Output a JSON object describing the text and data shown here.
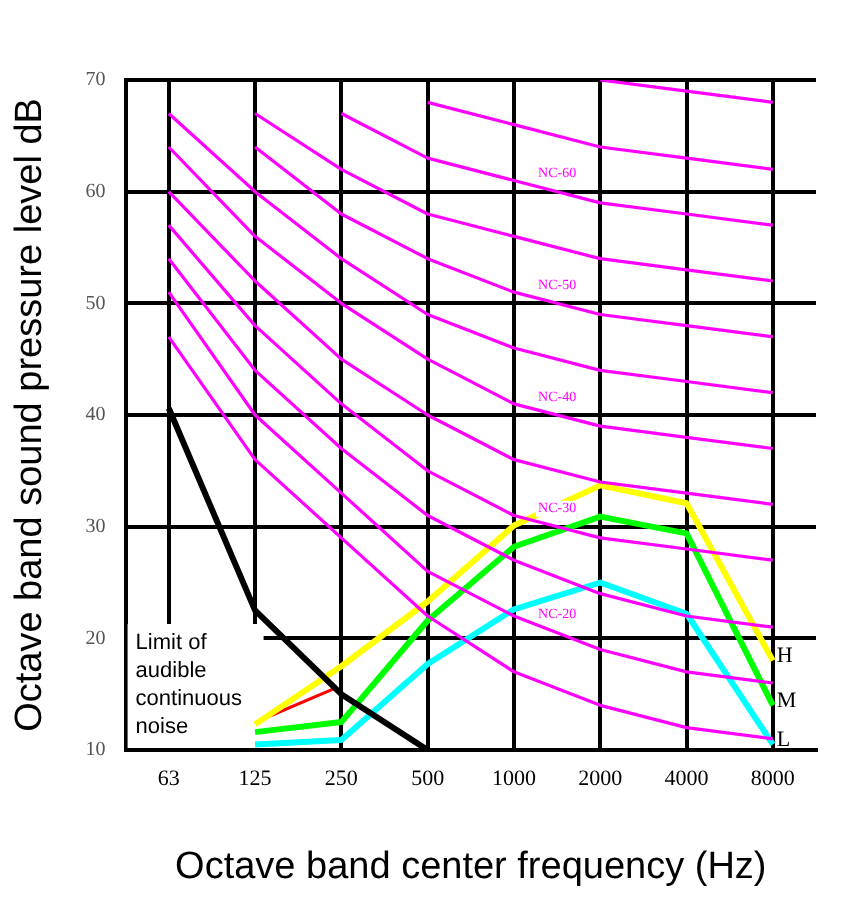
{
  "chart_data": {
    "type": "line",
    "xlabel": "Octave band center frequency (Hz)",
    "ylabel": "Octave band sound pressure level dB",
    "categories": [
      "63",
      "125",
      "250",
      "500",
      "1000",
      "2000",
      "4000",
      "8000"
    ],
    "ylim": [
      10,
      70
    ],
    "yticks": [
      10,
      20,
      30,
      40,
      50,
      60,
      70
    ],
    "grid": true,
    "legend": false,
    "marker": "none",
    "line_style": "solid",
    "series": [
      {
        "color": "#ff00ff",
        "values": [
          47,
          36,
          29,
          22,
          17,
          14,
          12,
          11
        ]
      },
      {
        "name": "NC-20",
        "color": "#ff00ff",
        "values": [
          51,
          40,
          33,
          26,
          22,
          19,
          17,
          16
        ]
      },
      {
        "color": "#ff00ff",
        "values": [
          54,
          44,
          37,
          31,
          27,
          24,
          22,
          21
        ]
      },
      {
        "name": "NC-30",
        "color": "#ff00ff",
        "values": [
          57,
          48,
          41,
          35,
          31,
          29,
          28,
          27
        ]
      },
      {
        "color": "#ff00ff",
        "values": [
          60,
          52,
          45,
          40,
          36,
          34,
          33,
          32
        ]
      },
      {
        "name": "NC-40",
        "color": "#ff00ff",
        "values": [
          64,
          56,
          50,
          45,
          41,
          39,
          38,
          37
        ]
      },
      {
        "color": "#ff00ff",
        "values": [
          67,
          60,
          54,
          49,
          46,
          44,
          43,
          42
        ]
      },
      {
        "name": "NC-50",
        "color": "#ff00ff",
        "values": [
          null,
          64,
          58,
          54,
          51,
          49,
          48,
          47
        ]
      },
      {
        "color": "#ff00ff",
        "values": [
          null,
          67,
          62,
          58,
          56,
          54,
          53,
          52
        ]
      },
      {
        "name": "NC-60",
        "color": "#ff00ff",
        "values": [
          null,
          null,
          67,
          63,
          61,
          59,
          58,
          57
        ]
      },
      {
        "color": "#ff00ff",
        "values": [
          null,
          null,
          null,
          68,
          66,
          64,
          63,
          62
        ]
      },
      {
        "color": "#ff00ff",
        "values": [
          null,
          null,
          null,
          null,
          null,
          70,
          69,
          68
        ]
      },
      {
        "color": "#000000",
        "values": [
          40.6,
          22.5,
          15,
          10,
          null,
          null,
          null,
          null
        ]
      },
      {
        "name": "H",
        "color": "#ffff00",
        "values": [
          null,
          12.3,
          17.5,
          23.3,
          30.1,
          33.7,
          32.1,
          18
        ]
      },
      {
        "name": "M",
        "color": "#00ff00",
        "values": [
          null,
          11.6,
          12.5,
          21.6,
          28.2,
          30.9,
          29.4,
          14
        ]
      },
      {
        "name": "L",
        "color": "#00ffff",
        "values": [
          null,
          10.5,
          10.9,
          17.7,
          22.6,
          25,
          22.2,
          10.5
        ]
      }
    ],
    "annotations": [
      {
        "text": "Limit of audible continuous noise",
        "x": "250",
        "y": 15
      }
    ]
  }
}
